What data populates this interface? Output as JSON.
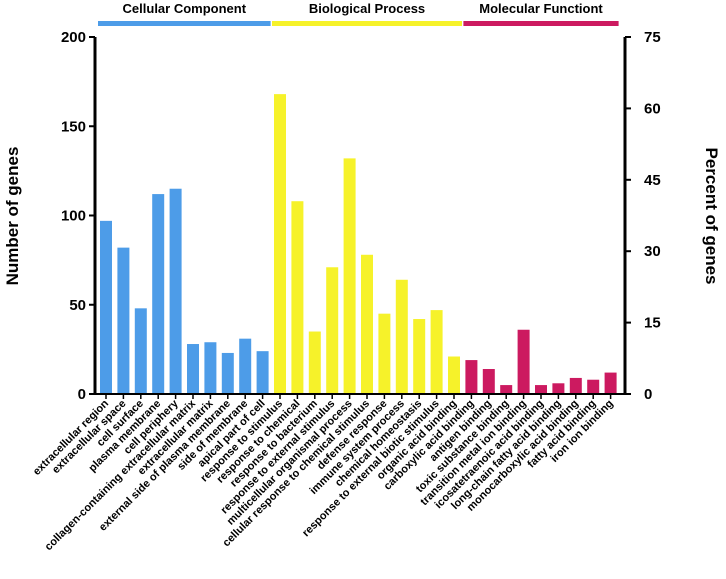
{
  "chart_data": {
    "type": "bar",
    "ylabel": "Number of genes",
    "y2label": "Percent of genes",
    "ylim": [
      0,
      200
    ],
    "y2lim": [
      0,
      75
    ],
    "yticks": [
      0,
      50,
      100,
      150,
      200
    ],
    "y2ticks": [
      0,
      15,
      30,
      45,
      60,
      75
    ],
    "groups": [
      {
        "name": "Cellular Component",
        "color": "#4d9ce8",
        "start": 0,
        "end": 9
      },
      {
        "name": "Biological Process",
        "color": "#f6f22a",
        "start": 10,
        "end": 20
      },
      {
        "name": "Molecular Functiont",
        "color": "#cc1a60",
        "start": 21,
        "end": 29
      }
    ],
    "categories": [
      "extracellular region",
      "extracellular space",
      "cell surface",
      "plasma membrane",
      "cell periphery",
      "collagen-containing extracellular matrix",
      "extracellular matrix",
      "external side of plasma membrane",
      "side of membrane",
      "apical part of cell",
      "response to stimulus",
      "response to chemical",
      "response to bacterium",
      "response to external stimulus",
      "multicellular organismal process",
      "cellular response to chemical stimulus",
      "defense response",
      "immune system process",
      "chemical homeostasis",
      "response to external biotic stimulus",
      "organic acid binding",
      "carboxylic acid binding",
      "antigen binding",
      "toxic substance binding",
      "transition metal ion binding",
      "icosatetraenoic acid binding",
      "long-chain fatty acid binding",
      "monocarboxylic acid binding",
      "fatty acid binding",
      "iron ion binding"
    ],
    "values": [
      97,
      82,
      48,
      112,
      115,
      28,
      29,
      23,
      31,
      24,
      168,
      108,
      35,
      71,
      132,
      78,
      45,
      64,
      42,
      47,
      21,
      19,
      14,
      5,
      36,
      5,
      6,
      9,
      8,
      12
    ]
  }
}
